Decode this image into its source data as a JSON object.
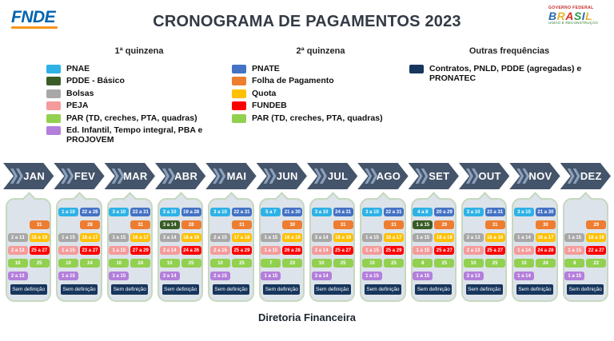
{
  "header": {
    "logo_text": "FNDE",
    "title": "CRONOGRAMA DE PAGAMENTOS 2023",
    "gov_logo": {
      "line1": "GOVERNO FEDERAL",
      "line2": "BRASIL",
      "line3": "UNIÃO E RECONSTRUÇÃO",
      "letter_colors": [
        "#2B6CB3",
        "#E4B732",
        "#D6332C",
        "#2E9A47",
        "#2B6CB3",
        "#E4B732"
      ]
    }
  },
  "colors": {
    "pnae": "#2EB2E6",
    "pdde": "#3A5D28",
    "bolsas": "#A8A8A8",
    "peja": "#F59B9B",
    "par": "#92D050",
    "edinfantil": "#B37FDB",
    "pnate": "#4472C4",
    "folha": "#ED7D31",
    "quota": "#FFC000",
    "fundeb": "#FE0000",
    "outras": "#17365D"
  },
  "legends": [
    {
      "title": "1ª quinzena",
      "items": [
        {
          "color": "pnae",
          "label": "PNAE"
        },
        {
          "color": "pdde",
          "label": "PDDE - Básico"
        },
        {
          "color": "bolsas",
          "label": "Bolsas"
        },
        {
          "color": "peja",
          "label": "PEJA"
        },
        {
          "color": "par",
          "label": "PAR (TD, creches, PTA, quadras)"
        },
        {
          "color": "edinfantil",
          "label": "Ed. Infantil, Tempo integral, PBA e PROJOVEM"
        }
      ]
    },
    {
      "title": "2ª quinzena",
      "items": [
        {
          "color": "pnate",
          "label": "PNATE"
        },
        {
          "color": "folha",
          "label": "Folha de Pagamento"
        },
        {
          "color": "quota",
          "label": "Quota"
        },
        {
          "color": "fundeb",
          "label": "FUNDEB"
        },
        {
          "color": "par",
          "label": "PAR (TD, creches, PTA, quadras)"
        }
      ]
    },
    {
      "title": "Outras frequências",
      "items": [
        {
          "color": "outras",
          "label": "Contratos, PNLD, PDDE (agregadas) e PRONATEC"
        }
      ]
    }
  ],
  "months": [
    {
      "label": "JAN",
      "no_data_label": "Sem definição",
      "rows": [
        [
          null,
          null
        ],
        [
          null,
          {
            "c": "folha",
            "t": "31"
          }
        ],
        [
          {
            "c": "bolsas",
            "t": "2 a 13"
          },
          {
            "c": "quota",
            "t": "18 a 19"
          }
        ],
        [
          {
            "c": "peja",
            "t": "2 a 13"
          },
          {
            "c": "fundeb",
            "t": "25 a 27"
          }
        ],
        [
          {
            "c": "par",
            "t": "10"
          },
          {
            "c": "par",
            "t": "25"
          }
        ],
        [
          {
            "c": "edinfantil",
            "t": "2 a 13"
          },
          null
        ]
      ]
    },
    {
      "label": "FEV",
      "no_data_label": "Sem definição",
      "rows": [
        [
          {
            "c": "pnae",
            "t": "1 a 10"
          },
          {
            "c": "pnate",
            "t": "22 a 28"
          }
        ],
        [
          null,
          {
            "c": "folha",
            "t": "28"
          }
        ],
        [
          {
            "c": "bolsas",
            "t": "1 a 15"
          },
          {
            "c": "quota",
            "t": "16 a 17"
          }
        ],
        [
          {
            "c": "peja",
            "t": "1 a 15"
          },
          {
            "c": "fundeb",
            "t": "23 a 27"
          }
        ],
        [
          {
            "c": "par",
            "t": "10"
          },
          {
            "c": "par",
            "t": "24"
          }
        ],
        [
          {
            "c": "edinfantil",
            "t": "1 a 15"
          },
          null
        ]
      ]
    },
    {
      "label": "MAR",
      "no_data_label": "Sem definição",
      "rows": [
        [
          {
            "c": "pnae",
            "t": "3 a 10"
          },
          {
            "c": "pnate",
            "t": "22 a 31"
          }
        ],
        [
          null,
          {
            "c": "folha",
            "t": "31"
          }
        ],
        [
          {
            "c": "bolsas",
            "t": "1 a 15"
          },
          {
            "c": "quota",
            "t": "16 a 17"
          }
        ],
        [
          {
            "c": "peja",
            "t": "1 a 15"
          },
          {
            "c": "fundeb",
            "t": "27 a 29"
          }
        ],
        [
          {
            "c": "par",
            "t": "10"
          },
          {
            "c": "par",
            "t": "24"
          }
        ],
        [
          {
            "c": "edinfantil",
            "t": "1 a 15"
          },
          null
        ]
      ]
    },
    {
      "label": "ABR",
      "no_data_label": "Sem definição",
      "rows": [
        [
          {
            "c": "pnae",
            "t": "3 a 10"
          },
          {
            "c": "pnate",
            "t": "19 a 28"
          }
        ],
        [
          {
            "c": "pdde",
            "t": "3 a 14"
          },
          {
            "c": "folha",
            "t": "28"
          }
        ],
        [
          {
            "c": "bolsas",
            "t": "3 a 14"
          },
          {
            "c": "quota",
            "t": "18 a 19"
          }
        ],
        [
          {
            "c": "peja",
            "t": "3 a 14"
          },
          {
            "c": "fundeb",
            "t": "24 a 26"
          }
        ],
        [
          {
            "c": "par",
            "t": "10"
          },
          {
            "c": "par",
            "t": "25"
          }
        ],
        [
          {
            "c": "edinfantil",
            "t": "3 a 14"
          },
          null
        ]
      ]
    },
    {
      "label": "MAI",
      "no_data_label": "Sem definição",
      "rows": [
        [
          {
            "c": "pnae",
            "t": "3 a 10"
          },
          {
            "c": "pnate",
            "t": "22 a 31"
          }
        ],
        [
          null,
          {
            "c": "folha",
            "t": "31"
          }
        ],
        [
          {
            "c": "bolsas",
            "t": "2 a 15"
          },
          {
            "c": "quota",
            "t": "17 a 18"
          }
        ],
        [
          {
            "c": "peja",
            "t": "2 a 15"
          },
          {
            "c": "fundeb",
            "t": "25 a 29"
          }
        ],
        [
          {
            "c": "par",
            "t": "10"
          },
          {
            "c": "par",
            "t": "25"
          }
        ],
        [
          {
            "c": "edinfantil",
            "t": "2 a 15"
          },
          null
        ]
      ]
    },
    {
      "label": "JUN",
      "no_data_label": "Sem definição",
      "rows": [
        [
          {
            "c": "pnae",
            "t": "5 a 7"
          },
          {
            "c": "pnate",
            "t": "21 a 30"
          }
        ],
        [
          null,
          {
            "c": "folha",
            "t": "30"
          }
        ],
        [
          {
            "c": "bolsas",
            "t": "1 a 15"
          },
          {
            "c": "quota",
            "t": "16 a 19"
          }
        ],
        [
          {
            "c": "peja",
            "t": "1 a 15"
          },
          {
            "c": "fundeb",
            "t": "26 a 28"
          }
        ],
        [
          {
            "c": "par",
            "t": "7"
          },
          {
            "c": "par",
            "t": "23"
          }
        ],
        [
          {
            "c": "edinfantil",
            "t": "1 a 15"
          },
          null
        ]
      ]
    },
    {
      "label": "JUL",
      "no_data_label": "Sem definição",
      "rows": [
        [
          {
            "c": "pnae",
            "t": "3 a 10"
          },
          {
            "c": "pnate",
            "t": "24 a 31"
          }
        ],
        [
          null,
          {
            "c": "folha",
            "t": "31"
          }
        ],
        [
          {
            "c": "bolsas",
            "t": "3 a 14"
          },
          {
            "c": "quota",
            "t": "18 a 19"
          }
        ],
        [
          {
            "c": "peja",
            "t": "3 a 14"
          },
          {
            "c": "fundeb",
            "t": "25 a 27"
          }
        ],
        [
          {
            "c": "par",
            "t": "10"
          },
          {
            "c": "par",
            "t": "25"
          }
        ],
        [
          {
            "c": "edinfantil",
            "t": "3 a 14"
          },
          null
        ]
      ]
    },
    {
      "label": "AGO",
      "no_data_label": "Sem definição",
      "rows": [
        [
          {
            "c": "pnae",
            "t": "3 a 10"
          },
          {
            "c": "pnate",
            "t": "22 a 31"
          }
        ],
        [
          null,
          {
            "c": "folha",
            "t": "31"
          }
        ],
        [
          {
            "c": "bolsas",
            "t": "1 a 15"
          },
          {
            "c": "quota",
            "t": "16 a 17"
          }
        ],
        [
          {
            "c": "peja",
            "t": "1 a 15"
          },
          {
            "c": "fundeb",
            "t": "25 a 29"
          }
        ],
        [
          {
            "c": "par",
            "t": "10"
          },
          {
            "c": "par",
            "t": "25"
          }
        ],
        [
          {
            "c": "edinfantil",
            "t": "1 a 15"
          },
          null
        ]
      ]
    },
    {
      "label": "SET",
      "no_data_label": "Sem definição",
      "rows": [
        [
          {
            "c": "pnae",
            "t": "4 a 8"
          },
          {
            "c": "pnate",
            "t": "20 a 29"
          }
        ],
        [
          {
            "c": "pdde",
            "t": "1 a 15"
          },
          {
            "c": "folha",
            "t": "29"
          }
        ],
        [
          {
            "c": "bolsas",
            "t": "1 a 15"
          },
          {
            "c": "quota",
            "t": "18 a 19"
          }
        ],
        [
          {
            "c": "peja",
            "t": "1 a 15"
          },
          {
            "c": "fundeb",
            "t": "25 a 27"
          }
        ],
        [
          {
            "c": "par",
            "t": "8"
          },
          {
            "c": "par",
            "t": "25"
          }
        ],
        [
          {
            "c": "edinfantil",
            "t": "1 a 15"
          },
          null
        ]
      ]
    },
    {
      "label": "OUT",
      "no_data_label": "Sem definição",
      "rows": [
        [
          {
            "c": "pnae",
            "t": "3 a 10"
          },
          {
            "c": "pnate",
            "t": "23 a 31"
          }
        ],
        [
          null,
          {
            "c": "folha",
            "t": "31"
          }
        ],
        [
          {
            "c": "bolsas",
            "t": "2 a 13"
          },
          {
            "c": "quota",
            "t": "18 a 19"
          }
        ],
        [
          {
            "c": "peja",
            "t": "2 a 13"
          },
          {
            "c": "fundeb",
            "t": "25 a 27"
          }
        ],
        [
          {
            "c": "par",
            "t": "10"
          },
          {
            "c": "par",
            "t": "25"
          }
        ],
        [
          {
            "c": "edinfantil",
            "t": "2 a 13"
          },
          null
        ]
      ]
    },
    {
      "label": "NOV",
      "no_data_label": "Sem definição",
      "rows": [
        [
          {
            "c": "pnae",
            "t": "3 a 10"
          },
          {
            "c": "pnate",
            "t": "21 a 30"
          }
        ],
        [
          null,
          {
            "c": "folha",
            "t": "30"
          }
        ],
        [
          {
            "c": "bolsas",
            "t": "1 a 14"
          },
          {
            "c": "quota",
            "t": "16 a 17"
          }
        ],
        [
          {
            "c": "peja",
            "t": "1 a 14"
          },
          {
            "c": "fundeb",
            "t": "24 a 28"
          }
        ],
        [
          {
            "c": "par",
            "t": "10"
          },
          {
            "c": "par",
            "t": "24"
          }
        ],
        [
          {
            "c": "edinfantil",
            "t": "1 a 14"
          },
          null
        ]
      ]
    },
    {
      "label": "DEZ",
      "no_data_label": "Sem definição",
      "rows": [
        [
          null,
          null
        ],
        [
          null,
          {
            "c": "folha",
            "t": "29"
          }
        ],
        [
          {
            "c": "bolsas",
            "t": "1 a 15"
          },
          {
            "c": "quota",
            "t": "18 a 19"
          }
        ],
        [
          {
            "c": "peja",
            "t": "1 a 15"
          },
          {
            "c": "fundeb",
            "t": "22 a 27"
          }
        ],
        [
          {
            "c": "par",
            "t": "8"
          },
          {
            "c": "par",
            "t": "22"
          }
        ],
        [
          {
            "c": "edinfantil",
            "t": "1 a 15"
          },
          null
        ]
      ]
    }
  ],
  "footer": {
    "text": "Diretoria Financeira"
  }
}
